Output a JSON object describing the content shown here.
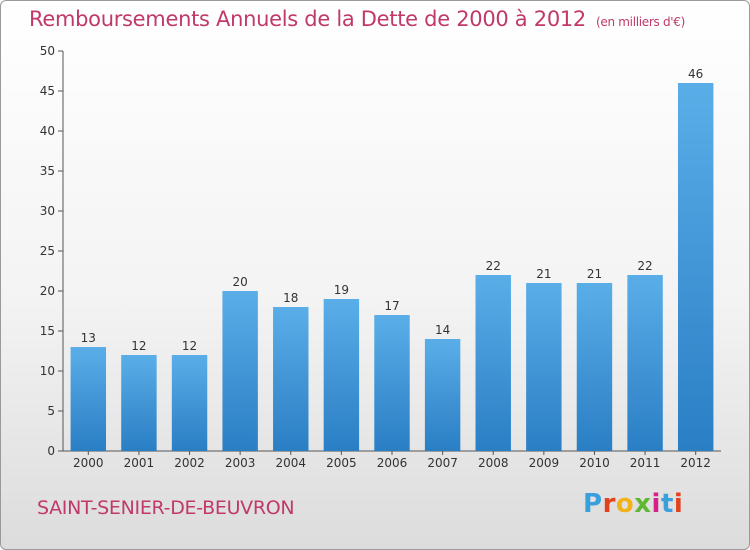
{
  "header": {
    "title": "Remboursements Annuels de la Dette de 2000 à 2012",
    "unit": "(en milliers d'€)"
  },
  "footer": {
    "commune": "SAINT-SENIER-DE-BEUVRON",
    "logo_letters": [
      "P",
      "r",
      "o",
      "x",
      "i",
      "t",
      "i"
    ],
    "logo_colors": [
      "#3aa0dc",
      "#e2431e",
      "#f2b21a",
      "#5fb832",
      "#d8208a",
      "#3aa0dc",
      "#e2431e"
    ]
  },
  "chart_data": {
    "type": "bar",
    "categories": [
      "2000",
      "2001",
      "2002",
      "2003",
      "2004",
      "2005",
      "2006",
      "2007",
      "2008",
      "2009",
      "2010",
      "2011",
      "2012"
    ],
    "values": [
      13,
      12,
      12,
      20,
      18,
      19,
      17,
      14,
      22,
      21,
      21,
      22,
      46
    ],
    "ylim": [
      0,
      50
    ],
    "yticks": [
      0,
      5,
      10,
      15,
      20,
      25,
      30,
      35,
      40,
      45,
      50
    ],
    "grid": false,
    "bar_color": "#3f97d9",
    "data_labels": true
  }
}
